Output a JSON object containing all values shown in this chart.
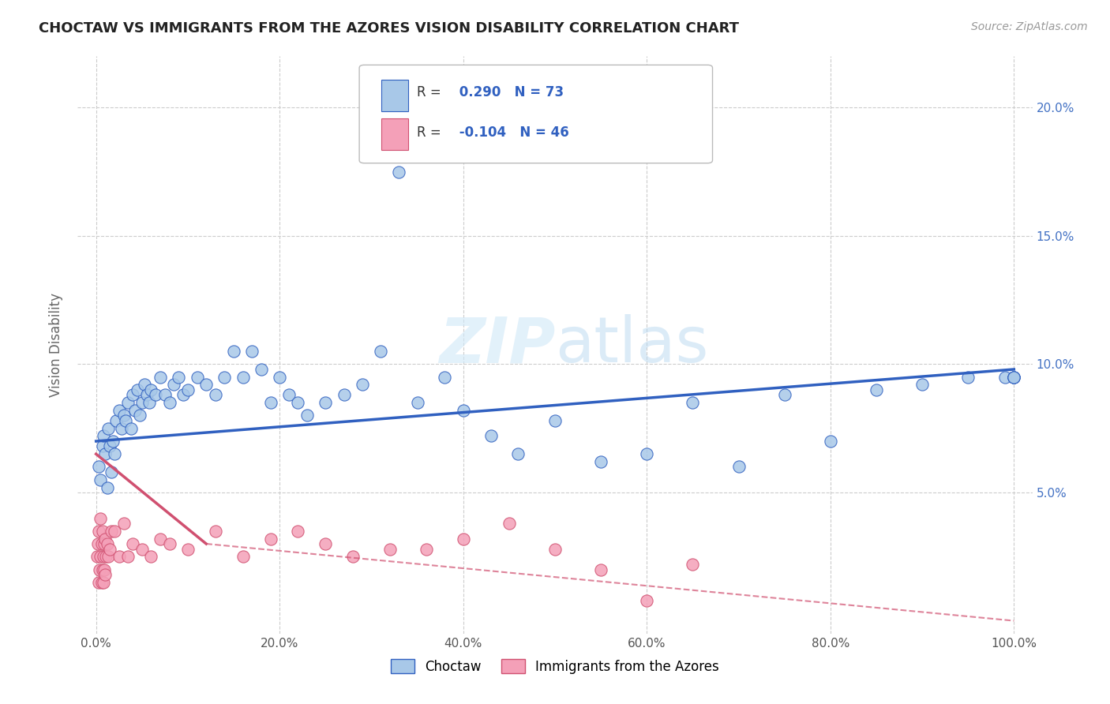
{
  "title": "CHOCTAW VS IMMIGRANTS FROM THE AZORES VISION DISABILITY CORRELATION CHART",
  "source": "Source: ZipAtlas.com",
  "ylabel": "Vision Disability",
  "xlim": [
    -2,
    102
  ],
  "ylim": [
    -0.5,
    22
  ],
  "xtick_labels": [
    "0.0%",
    "20.0%",
    "40.0%",
    "60.0%",
    "80.0%",
    "100.0%"
  ],
  "xtick_vals": [
    0,
    20,
    40,
    60,
    80,
    100
  ],
  "ytick_labels": [
    "5.0%",
    "10.0%",
    "15.0%",
    "20.0%"
  ],
  "ytick_vals": [
    5,
    10,
    15,
    20
  ],
  "legend_label1": "Choctaw",
  "legend_label2": "Immigrants from the Azores",
  "R1": "0.290",
  "N1": "73",
  "R2": "-0.104",
  "N2": "46",
  "color1": "#a8c8e8",
  "color2": "#f4a0b8",
  "line_color1": "#3060c0",
  "line_color2": "#d05070",
  "background_color": "#ffffff",
  "choctaw_x": [
    0.3,
    0.5,
    0.7,
    0.8,
    1.0,
    1.2,
    1.3,
    1.5,
    1.7,
    1.8,
    2.0,
    2.2,
    2.5,
    2.8,
    3.0,
    3.2,
    3.5,
    3.8,
    4.0,
    4.2,
    4.5,
    4.8,
    5.0,
    5.3,
    5.5,
    5.8,
    6.0,
    6.5,
    7.0,
    7.5,
    8.0,
    8.5,
    9.0,
    9.5,
    10.0,
    11.0,
    12.0,
    13.0,
    14.0,
    15.0,
    16.0,
    17.0,
    18.0,
    19.0,
    20.0,
    21.0,
    22.0,
    23.0,
    25.0,
    27.0,
    29.0,
    31.0,
    33.0,
    35.0,
    38.0,
    40.0,
    43.0,
    46.0,
    50.0,
    55.0,
    60.0,
    65.0,
    70.0,
    75.0,
    80.0,
    85.0,
    90.0,
    95.0,
    99.0,
    100.0,
    100.0,
    100.0,
    100.0
  ],
  "choctaw_y": [
    6.0,
    5.5,
    6.8,
    7.2,
    6.5,
    5.2,
    7.5,
    6.8,
    5.8,
    7.0,
    6.5,
    7.8,
    8.2,
    7.5,
    8.0,
    7.8,
    8.5,
    7.5,
    8.8,
    8.2,
    9.0,
    8.0,
    8.5,
    9.2,
    8.8,
    8.5,
    9.0,
    8.8,
    9.5,
    8.8,
    8.5,
    9.2,
    9.5,
    8.8,
    9.0,
    9.5,
    9.2,
    8.8,
    9.5,
    10.5,
    9.5,
    10.5,
    9.8,
    8.5,
    9.5,
    8.8,
    8.5,
    8.0,
    8.5,
    8.8,
    9.2,
    10.5,
    17.5,
    8.5,
    9.5,
    8.2,
    7.2,
    6.5,
    7.8,
    6.2,
    6.5,
    8.5,
    6.0,
    8.8,
    7.0,
    9.0,
    9.2,
    9.5,
    9.5,
    9.5,
    9.5,
    9.5,
    9.5
  ],
  "azores_x": [
    0.1,
    0.2,
    0.3,
    0.3,
    0.4,
    0.5,
    0.5,
    0.6,
    0.6,
    0.7,
    0.7,
    0.8,
    0.8,
    0.9,
    0.9,
    1.0,
    1.0,
    1.1,
    1.2,
    1.3,
    1.5,
    1.7,
    2.0,
    2.5,
    3.0,
    3.5,
    4.0,
    5.0,
    6.0,
    7.0,
    8.0,
    10.0,
    13.0,
    16.0,
    19.0,
    22.0,
    25.0,
    28.0,
    32.0,
    36.0,
    40.0,
    45.0,
    50.0,
    55.0,
    60.0,
    65.0
  ],
  "azores_y": [
    2.5,
    3.0,
    1.5,
    3.5,
    2.0,
    2.5,
    4.0,
    1.5,
    3.0,
    2.0,
    3.5,
    1.5,
    2.5,
    2.0,
    3.0,
    1.8,
    3.2,
    2.5,
    3.0,
    2.5,
    2.8,
    3.5,
    3.5,
    2.5,
    3.8,
    2.5,
    3.0,
    2.8,
    2.5,
    3.2,
    3.0,
    2.8,
    3.5,
    2.5,
    3.2,
    3.5,
    3.0,
    2.5,
    2.8,
    2.8,
    3.2,
    3.8,
    2.8,
    2.0,
    0.8,
    2.2
  ],
  "choctaw_line_x0": 0,
  "choctaw_line_y0": 7.0,
  "choctaw_line_x1": 100,
  "choctaw_line_y1": 9.8,
  "azores_solid_x0": 0,
  "azores_solid_y0": 6.5,
  "azores_solid_x1": 12,
  "azores_solid_y1": 3.0,
  "azores_dash_x0": 12,
  "azores_dash_y0": 3.0,
  "azores_dash_x1": 100,
  "azores_dash_y1": 0.0
}
